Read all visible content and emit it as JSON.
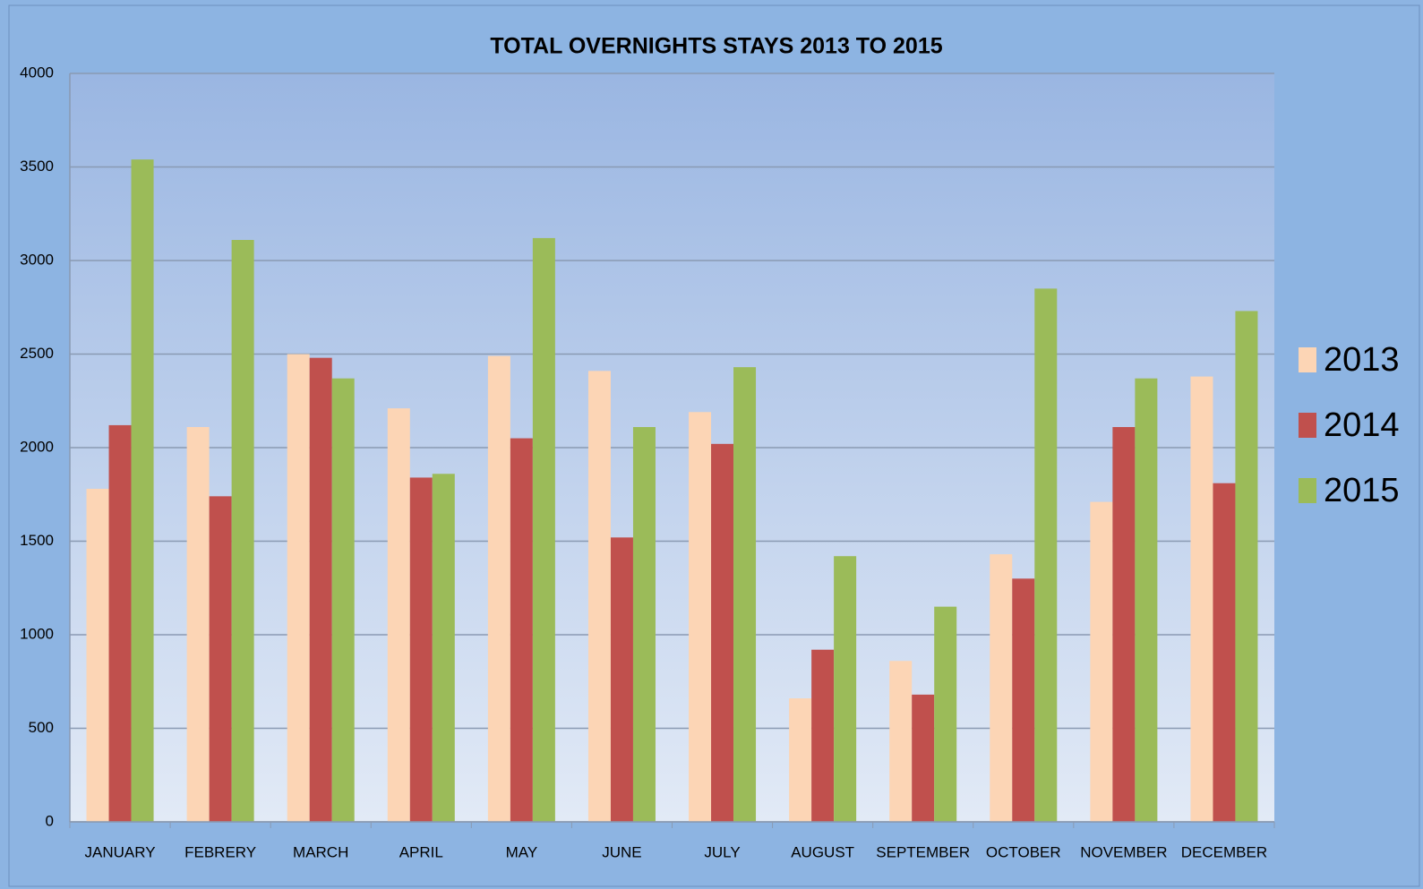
{
  "chart_data": {
    "type": "bar",
    "title": "TOTAL OVERNIGHTS STAYS 2013 TO 2015",
    "categories": [
      "JANUARY",
      "FEBRERY",
      "MARCH",
      "APRIL",
      "MAY",
      "JUNE",
      "JULY",
      "AUGUST",
      "SEPTEMBER",
      "OCTOBER",
      "NOVEMBER",
      "DECEMBER"
    ],
    "series": [
      {
        "name": "2013",
        "color": "#fcd5b5",
        "values": [
          1780,
          2110,
          2500,
          2210,
          2490,
          2410,
          2190,
          660,
          860,
          1430,
          1710,
          2380
        ]
      },
      {
        "name": "2014",
        "color": "#c0504d",
        "values": [
          2120,
          1740,
          2480,
          1840,
          2050,
          1520,
          2020,
          920,
          680,
          1300,
          2110,
          1810
        ]
      },
      {
        "name": "2015",
        "color": "#9bbb59",
        "values": [
          3540,
          3110,
          2370,
          1860,
          3120,
          2110,
          2430,
          1420,
          1150,
          2850,
          2370,
          2730
        ]
      }
    ],
    "ylim": [
      0,
      4000
    ],
    "yticks": [
      0,
      500,
      1000,
      1500,
      2000,
      2500,
      3000,
      3500,
      4000
    ],
    "grid": true,
    "legend": "right"
  }
}
